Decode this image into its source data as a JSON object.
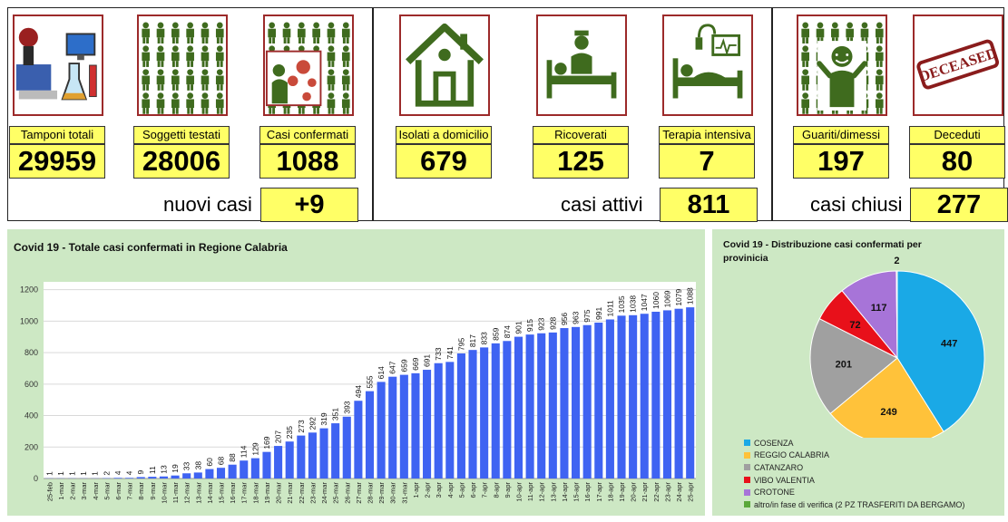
{
  "cards": [
    {
      "id": "tamponi",
      "label": "Tamponi totali",
      "value": "29959",
      "icon": "lab-equipment-icon"
    },
    {
      "id": "soggetti",
      "label": "Soggetti testati",
      "value": "28006",
      "icon": "people-grid-icon"
    },
    {
      "id": "confermati",
      "label": "Casi confermati",
      "value": "1088",
      "icon": "virus-infection-icon"
    },
    {
      "id": "isolati",
      "label": "Isolati a domicilio",
      "value": "679",
      "icon": "house-icon"
    },
    {
      "id": "ricoverati",
      "label": "Ricoverati",
      "value": "125",
      "icon": "hospital-bed-icon"
    },
    {
      "id": "terapia",
      "label": "Terapia intensiva",
      "value": "7",
      "icon": "intensive-care-icon"
    },
    {
      "id": "guariti",
      "label": "Guariti/dimessi",
      "value": "197",
      "icon": "recovered-person-icon"
    },
    {
      "id": "deceduti",
      "label": "Deceduti",
      "value": "80",
      "icon": "deceased-stamp-icon"
    }
  ],
  "deceased_stamp_text": "DECEASED",
  "summary": {
    "nuovi_label": "nuovi casi",
    "nuovi_value": "+9",
    "attivi_label": "casi attivi",
    "attivi_value": "811",
    "chiusi_label": "casi chiusi",
    "chiusi_value": "277"
  },
  "colors": {
    "card_yellow": "#ffff66",
    "icon_border": "#9c2a2a",
    "icon_green": "#3f6b1e",
    "chart_bg": "#cde8c4",
    "bar_blue": "#3f63f2"
  },
  "chart_data": [
    {
      "type": "bar",
      "title": "Covid 19 - Totale casi confermati in Regione Calabria",
      "categories": [
        "25-feb",
        "1-mar",
        "2-mar",
        "3-mar",
        "4-mar",
        "5-mar",
        "6-mar",
        "7-mar",
        "8-mar",
        "9-mar",
        "10-mar",
        "11-mar",
        "12-mar",
        "13-mar",
        "14-mar",
        "15-mar",
        "16-mar",
        "17-mar",
        "18-mar",
        "19-mar",
        "20-mar",
        "21-mar",
        "22-mar",
        "23-mar",
        "24-mar",
        "25-mar",
        "26-mar",
        "27-mar",
        "28-mar",
        "29-mar",
        "30-mar",
        "31-mar",
        "1-apr",
        "2-apr",
        "3-apr",
        "4-apr",
        "5-apr",
        "6-apr",
        "7-apr",
        "8-apr",
        "9-apr",
        "10-apr",
        "11-apr",
        "12-apr",
        "13-apr",
        "14-apr",
        "15-apr",
        "16-apr",
        "17-apr",
        "18-apr",
        "19-apr",
        "20-apr",
        "21-apr",
        "22-apr",
        "23-apr",
        "24-apr",
        "25-apr"
      ],
      "values": [
        1,
        1,
        1,
        1,
        1,
        2,
        4,
        4,
        9,
        11,
        13,
        19,
        33,
        38,
        60,
        68,
        88,
        114,
        129,
        169,
        207,
        235,
        273,
        292,
        319,
        351,
        393,
        494,
        555,
        614,
        647,
        659,
        669,
        691,
        733,
        741,
        795,
        817,
        833,
        859,
        874,
        901,
        915,
        923,
        928,
        956,
        963,
        975,
        991,
        1011,
        1035,
        1038,
        1047,
        1060,
        1069,
        1079,
        1088
      ],
      "yticks": [
        0,
        200,
        400,
        600,
        800,
        1000,
        1200
      ],
      "ylim": [
        0,
        1250
      ],
      "xlabel": "",
      "ylabel": ""
    },
    {
      "type": "pie",
      "title": "Covid 19 - Distribuzione casi confermati per provinicia",
      "slices": [
        {
          "name": "COSENZA",
          "value": 447,
          "color": "#1aa9e6"
        },
        {
          "name": "REGGIO CALABRIA",
          "value": 249,
          "color": "#ffc23a"
        },
        {
          "name": "CATANZARO",
          "value": 201,
          "color": "#a0a0a0"
        },
        {
          "name": "VIBO VALENTIA",
          "value": 72,
          "color": "#e8101a"
        },
        {
          "name": "CROTONE",
          "value": 117,
          "color": "#a774d8"
        },
        {
          "name": "altro/in fase di verifica (2 PZ TRASFERITI DA BERGAMO)",
          "value": 2,
          "color": "#5aa83a"
        }
      ]
    }
  ]
}
